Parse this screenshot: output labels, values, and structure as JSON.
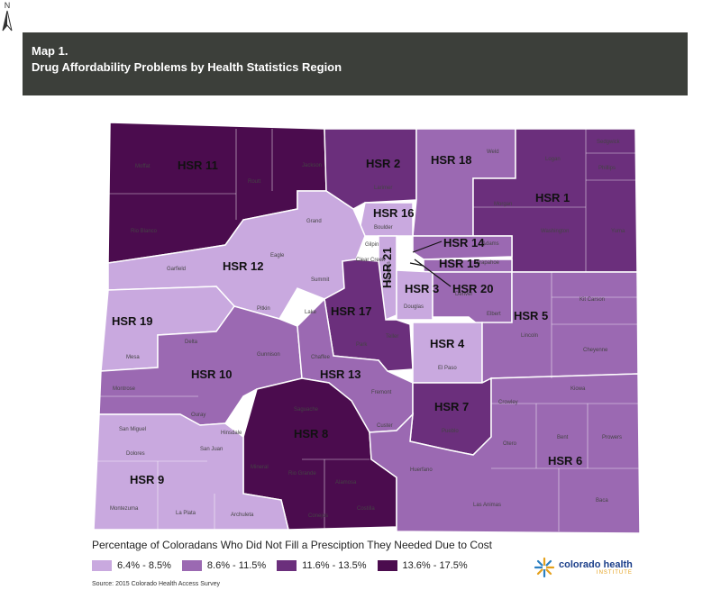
{
  "header": {
    "map_number": "Map 1.",
    "title": "Drug Affordability Problems by Health Statistics Region"
  },
  "north_label": "N",
  "legend": {
    "title": "Percentage of Coloradans Who Did Not Fill a Presciption They Needed Due to Cost",
    "items": [
      {
        "label": "6.4% - 8.5%",
        "color": "#c9a9df"
      },
      {
        "label": "8.6% - 11.5%",
        "color": "#9b69b2"
      },
      {
        "label": "11.6% - 13.5%",
        "color": "#6b2f7c"
      },
      {
        "label": "13.6% - 17.5%",
        "color": "#4b0c4e"
      }
    ]
  },
  "source": "Source: 2015 Colorado Health Access Survey",
  "logo": {
    "main": "colorado health",
    "sub": "INSTITUTE"
  },
  "regions": [
    {
      "label": "HSR 11",
      "class": 3
    },
    {
      "label": "HSR 2",
      "class": 2
    },
    {
      "label": "HSR 18",
      "class": 1
    },
    {
      "label": "HSR 1",
      "class": 2
    },
    {
      "label": "HSR 16",
      "class": 0
    },
    {
      "label": "HSR 14",
      "class": 1
    },
    {
      "label": "HSR 15",
      "class": 1
    },
    {
      "label": "HSR 20",
      "class": 1
    },
    {
      "label": "HSR 21",
      "class": 0
    },
    {
      "label": "HSR 3",
      "class": 0
    },
    {
      "label": "HSR 12",
      "class": 0
    },
    {
      "label": "HSR 19",
      "class": 0
    },
    {
      "label": "HSR 17",
      "class": 2
    },
    {
      "label": "HSR 4",
      "class": 0
    },
    {
      "label": "HSR 5",
      "class": 1
    },
    {
      "label": "HSR 10",
      "class": 1
    },
    {
      "label": "HSR 13",
      "class": 1
    },
    {
      "label": "HSR 7",
      "class": 2
    },
    {
      "label": "HSR 8",
      "class": 3
    },
    {
      "label": "HSR 6",
      "class": 1
    },
    {
      "label": "HSR 9",
      "class": 0
    }
  ],
  "counties": [
    "Moffat",
    "Routt",
    "Jackson",
    "Larimer",
    "Weld",
    "Logan",
    "Sedgwick",
    "Phillips",
    "Rio Blanco",
    "Grand",
    "Boulder",
    "Morgan",
    "Washington",
    "Yuma",
    "Garfield",
    "Eagle",
    "Gilpin",
    "Clear Creek",
    "Summit",
    "Adams",
    "Arapahoe",
    "Jefferson",
    "Douglas",
    "Denver",
    "Pitkin",
    "Lake",
    "Park",
    "Elbert",
    "Lincoln",
    "Kit Carson",
    "Mesa",
    "Delta",
    "Gunnison",
    "Chaffee",
    "Teller",
    "El Paso",
    "Cheyenne",
    "Montrose",
    "Ouray",
    "Fremont",
    "Kiowa",
    "Crowley",
    "San Miguel",
    "Hinsdale",
    "Saguache",
    "Custer",
    "Pueblo",
    "Otero",
    "Bent",
    "Prowers",
    "Dolores",
    "San Juan",
    "Mineral",
    "Rio Grande",
    "Alamosa",
    "Huerfano",
    "Montezuma",
    "La Plata",
    "Archuleta",
    "Conejos",
    "Costilla",
    "Las Animas",
    "Baca"
  ]
}
